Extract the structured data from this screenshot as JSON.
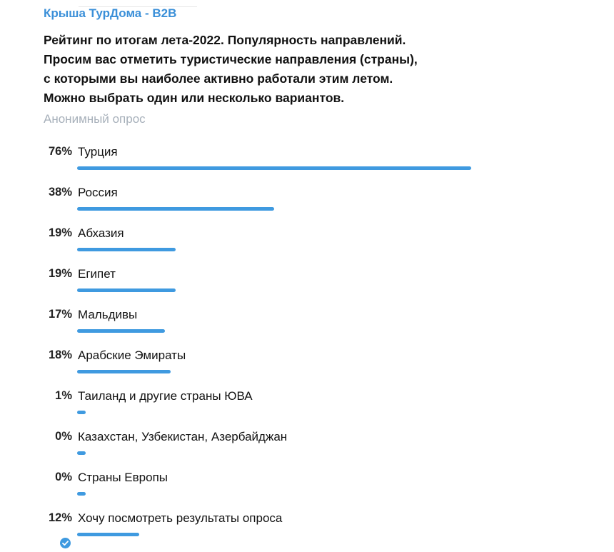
{
  "header": {
    "channel_name": "Крыша ТурДома - B2B"
  },
  "poll": {
    "question_lines": [
      "Рейтинг по итогам лета-2022. Популярность направлений.",
      "Просим вас отметить туристические направления (страны),",
      "с которыми вы наиболее активно работали этим летом.",
      "Можно выбрать один или несколько вариантов."
    ],
    "type_label": "Анонимный опрос",
    "options": [
      {
        "percent_label": "76%",
        "percent": 76,
        "text": "Турция",
        "chosen": false
      },
      {
        "percent_label": "38%",
        "percent": 38,
        "text": "Россия",
        "chosen": false
      },
      {
        "percent_label": "19%",
        "percent": 19,
        "text": "Абхазия",
        "chosen": false
      },
      {
        "percent_label": "19%",
        "percent": 19,
        "text": "Египет",
        "chosen": false
      },
      {
        "percent_label": "17%",
        "percent": 17,
        "text": "Мальдивы",
        "chosen": false
      },
      {
        "percent_label": "18%",
        "percent": 18,
        "text": "Арабские Эмираты",
        "chosen": false
      },
      {
        "percent_label": "1%",
        "percent": 1,
        "text": "Таиланд и другие страны ЮВА",
        "chosen": false
      },
      {
        "percent_label": "0%",
        "percent": 0,
        "text": "Казахстан, Узбекистан, Азербайджан",
        "chosen": false
      },
      {
        "percent_label": "0%",
        "percent": 0,
        "text": "Страны Европы",
        "chosen": false
      },
      {
        "percent_label": "12%",
        "percent": 12,
        "text": "Хочу посмотреть результаты опроса",
        "chosen": true
      }
    ]
  },
  "colors": {
    "accent": "#3f9ae0",
    "channel_name": "#3a8fd8",
    "muted_text": "#a7b0ba"
  },
  "icons": {
    "chosen_option": "check-circle-icon"
  }
}
